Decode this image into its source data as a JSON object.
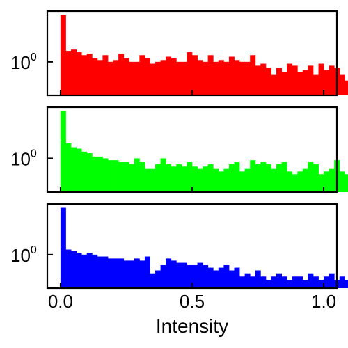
{
  "chart_data": {
    "type": "histogram",
    "layout": "3 stacked panels sharing x axis",
    "xlabel": "Intensity",
    "xlim": [
      -0.05,
      1.05
    ],
    "x_ticks": [
      0.0,
      0.5,
      1.0
    ],
    "x_tick_labels": [
      "0.0",
      "0.5",
      "1.0"
    ],
    "bin_width": 0.02,
    "bin_start": 0.0,
    "y_scale": "log",
    "ylim": [
      0.4,
      4.0
    ],
    "y_ticks": [
      1
    ],
    "y_tick_base": "10",
    "y_tick_exponent": "0",
    "panels": [
      {
        "color": "#ff0000",
        "counts": [
          3.6,
          1.35,
          1.4,
          1.3,
          1.2,
          1.25,
          1.1,
          1.05,
          1.2,
          1.0,
          1.05,
          1.25,
          1.1,
          1.0,
          1.0,
          1.2,
          1.1,
          0.95,
          1.0,
          1.05,
          1.15,
          1.1,
          1.0,
          1.0,
          1.3,
          1.2,
          1.05,
          1.0,
          1.2,
          1.0,
          1.05,
          1.0,
          1.15,
          1.05,
          1.0,
          1.0,
          1.2,
          0.9,
          0.95,
          0.85,
          0.7,
          0.85,
          0.75,
          0.95,
          0.9,
          0.75,
          0.8,
          0.9,
          0.7,
          0.95,
          0.8,
          0.9,
          0.85,
          0.7,
          0.6,
          0.55
        ]
      },
      {
        "color": "#00ff00",
        "counts": [
          3.6,
          1.5,
          1.35,
          1.3,
          1.2,
          1.15,
          1.05,
          1.05,
          1.0,
          0.95,
          0.95,
          0.9,
          0.9,
          0.85,
          1.0,
          0.9,
          0.75,
          0.75,
          0.85,
          1.0,
          0.85,
          0.8,
          0.85,
          0.8,
          0.9,
          0.8,
          0.75,
          0.8,
          0.85,
          0.75,
          0.7,
          0.75,
          0.85,
          0.9,
          0.7,
          0.75,
          0.95,
          0.85,
          0.9,
          0.85,
          0.75,
          0.85,
          0.9,
          0.7,
          0.65,
          0.7,
          0.75,
          0.9,
          0.85,
          0.65,
          0.7,
          0.75,
          0.95,
          0.7,
          0.65,
          0.6
        ]
      },
      {
        "color": "#0000ff",
        "counts": [
          3.6,
          1.15,
          1.1,
          1.05,
          1.0,
          1.05,
          1.0,
          0.95,
          0.95,
          0.9,
          0.9,
          0.9,
          0.85,
          0.85,
          0.9,
          0.85,
          0.95,
          0.6,
          0.65,
          0.75,
          0.9,
          0.85,
          0.8,
          0.8,
          0.75,
          0.75,
          0.8,
          0.75,
          0.7,
          0.65,
          0.7,
          0.75,
          0.65,
          0.7,
          0.55,
          0.6,
          0.55,
          0.65,
          0.55,
          0.5,
          0.55,
          0.6,
          0.55,
          0.5,
          0.55,
          0.55,
          0.5,
          0.6,
          0.55,
          0.5,
          0.55,
          0.6,
          0.5,
          0.55,
          0.5,
          0.45
        ]
      }
    ]
  }
}
